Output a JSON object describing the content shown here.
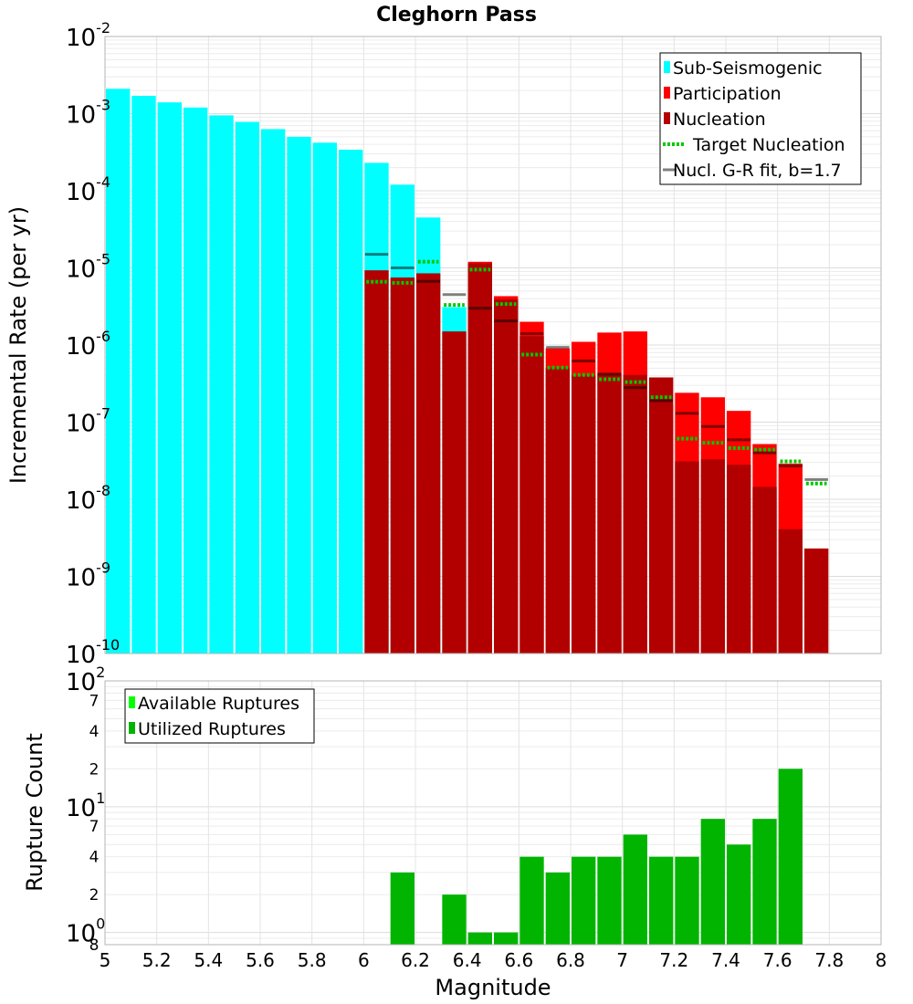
{
  "chart_data": [
    {
      "type": "bar",
      "title": "Cleghorn Pass",
      "xlabel": "",
      "ylabel": "Incremental Rate (per yr)",
      "yscale": "log",
      "xlim": [
        5,
        8
      ],
      "ylim": [
        1e-10,
        0.01
      ],
      "y_tick_labels": [
        {
          "base": "10",
          "exp": "-2",
          "value": 0.01
        },
        {
          "base": "10",
          "exp": "-3",
          "value": 0.001
        },
        {
          "base": "10",
          "exp": "-4",
          "value": 0.0001
        },
        {
          "base": "10",
          "exp": "-5",
          "value": 1e-05
        },
        {
          "base": "10",
          "exp": "-6",
          "value": 1e-06
        },
        {
          "base": "10",
          "exp": "-7",
          "value": 1e-07
        },
        {
          "base": "10",
          "exp": "-8",
          "value": 1e-08
        },
        {
          "base": "10",
          "exp": "-9",
          "value": 1e-09
        },
        {
          "base": "10",
          "exp": "-10",
          "value": 1e-10
        }
      ],
      "grid": true,
      "legend_position": "top-right",
      "legend": [
        {
          "label": "Sub-Seismogenic",
          "color": "#00ffff",
          "kind": "bar"
        },
        {
          "label": "Participation",
          "color": "#ff0000",
          "kind": "bar"
        },
        {
          "label": "Nucleation",
          "color": "#b20000",
          "kind": "bar"
        },
        {
          "label": "Target Nucleation",
          "color": "#00c800",
          "kind": "dotted"
        },
        {
          "label": "Nucl. G-R fit, b=1.7",
          "color": "#808080",
          "kind": "line"
        }
      ],
      "bin_width": 0.1,
      "sub_seismogenic": {
        "x": [
          5.05,
          5.15,
          5.25,
          5.35,
          5.45,
          5.55,
          5.65,
          5.75,
          5.85,
          5.95,
          6.05,
          6.15,
          6.25,
          6.35
        ],
        "values": [
          0.0021,
          0.0017,
          0.0014,
          0.0012,
          0.00095,
          0.00078,
          0.00063,
          0.0005,
          0.00042,
          0.00034,
          0.00023,
          0.00012,
          4.5e-05,
          3.1e-06
        ]
      },
      "participation": {
        "x": [
          6.45,
          6.55,
          6.65,
          6.75,
          6.85,
          6.95,
          7.05,
          7.15,
          7.25,
          7.35,
          7.45,
          7.55,
          7.65,
          7.75
        ],
        "values": [
          1.2e-05,
          4.3e-06,
          2e-06,
          9e-07,
          1.1e-06,
          1.45e-06,
          1.5e-06,
          1.7e-07,
          2.4e-07,
          2.1e-07,
          1.4e-07,
          5.2e-08,
          2.9e-08,
          0
        ]
      },
      "nucleation": {
        "x": [
          6.05,
          6.15,
          6.25,
          6.35,
          6.45,
          6.55,
          6.65,
          6.75,
          6.85,
          6.95,
          7.05,
          7.15,
          7.25,
          7.35,
          7.45,
          7.55,
          7.65,
          7.75
        ],
        "values": [
          9.3e-06,
          7.5e-06,
          8.5e-06,
          1.5e-06,
          1.15e-05,
          3.9e-06,
          1.3e-06,
          5e-07,
          4e-07,
          4.3e-07,
          4.1e-07,
          3.8e-07,
          3.1e-08,
          3.3e-08,
          2.8e-08,
          1.45e-08,
          4.1e-09,
          2.3e-09
        ]
      },
      "target_nucleation": {
        "x": [
          6.05,
          6.15,
          6.25,
          6.35,
          6.45,
          6.55,
          6.65,
          6.75,
          6.85,
          6.95,
          7.05,
          7.15,
          7.25,
          7.35,
          7.45,
          7.55,
          7.65,
          7.75
        ],
        "values": [
          6.6e-06,
          6.4e-06,
          1.2e-05,
          3.3e-06,
          9.5e-06,
          3.4e-06,
          7.5e-07,
          5.1e-07,
          4.1e-07,
          3.6e-07,
          3.3e-07,
          2.1e-07,
          6.1e-08,
          5.4e-08,
          4.6e-08,
          4.4e-08,
          3.1e-08,
          1.6e-08
        ]
      },
      "gr_fit": {
        "x": [
          6.05,
          6.15,
          6.25,
          6.35,
          6.45,
          6.55,
          6.65,
          6.75,
          6.85,
          6.95,
          7.05,
          7.15,
          7.25,
          7.35,
          7.45,
          7.55,
          7.65,
          7.75
        ],
        "values": [
          1.5e-05,
          1e-05,
          6.7e-06,
          4.5e-06,
          3e-06,
          2.05e-06,
          1.4e-06,
          9.3e-07,
          6.2e-07,
          4.2e-07,
          2.8e-07,
          1.9e-07,
          1.3e-07,
          8.8e-08,
          5.9e-08,
          4e-08,
          2.7e-08,
          1.8e-08
        ]
      }
    },
    {
      "type": "bar",
      "title": "",
      "xlabel": "Magnitude",
      "ylabel": "Rupture Count",
      "yscale": "log",
      "xlim": [
        5,
        8
      ],
      "ylim": [
        0.8,
        100
      ],
      "x_ticks": [
        "5",
        "5.2",
        "5.4",
        "5.6",
        "5.8",
        "6",
        "6.2",
        "6.4",
        "6.6",
        "6.8",
        "7",
        "7.2",
        "7.4",
        "7.6",
        "7.8",
        "8"
      ],
      "y_major_labels": [
        {
          "base": "10",
          "exp": "2",
          "value": 100
        },
        {
          "base": "10",
          "exp": "1",
          "value": 10
        },
        {
          "base": "10",
          "exp": "0",
          "value": 1
        }
      ],
      "y_minor_labels": [
        {
          "label": "7",
          "value": 70
        },
        {
          "label": "4",
          "value": 40
        },
        {
          "label": "2",
          "value": 20
        },
        {
          "label": "7",
          "value": 7
        },
        {
          "label": "4",
          "value": 4
        },
        {
          "label": "2",
          "value": 2
        },
        {
          "label": "8",
          "value": 0.8
        }
      ],
      "grid": true,
      "legend_position": "top-left",
      "legend": [
        {
          "label": "Available Ruptures",
          "color": "#00ff00"
        },
        {
          "label": "Utilized Ruptures",
          "color": "#00b400"
        }
      ],
      "bin_width": 0.1,
      "series": [
        {
          "name": "Utilized Ruptures",
          "x": [
            6.15,
            6.35,
            6.45,
            6.55,
            6.65,
            6.75,
            6.85,
            6.95,
            7.05,
            7.15,
            7.25,
            7.35,
            7.45,
            7.55,
            7.65
          ],
          "values": [
            3,
            2,
            1,
            1,
            4,
            3,
            4,
            4,
            6,
            4,
            4,
            8,
            5,
            8,
            20
          ]
        }
      ]
    }
  ]
}
